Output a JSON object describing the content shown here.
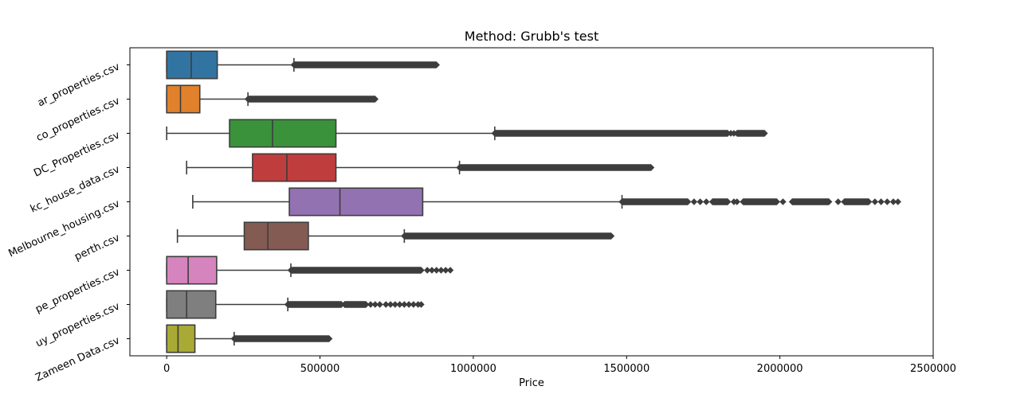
{
  "chart_data": {
    "type": "boxplot",
    "orientation": "horizontal",
    "title": "Method: Grubb's test",
    "xlabel": "Price",
    "ylabel": "",
    "xlim": [
      -120000,
      2500000
    ],
    "xticks": [
      0,
      500000,
      1000000,
      1500000,
      2000000,
      2500000
    ],
    "xtick_labels": [
      "0",
      "500000",
      "1000000",
      "1500000",
      "2000000",
      "2500000"
    ],
    "grid": false,
    "series": [
      {
        "name": "ar_properties.csv",
        "color": "#3274a1",
        "whisker_low": 0,
        "q1": 0,
        "median": 80000,
        "q3": 165000,
        "whisker_high": 415000,
        "outlier_segments": [
          [
            415000,
            880000
          ]
        ],
        "outlier_points": []
      },
      {
        "name": "co_properties.csv",
        "color": "#e1812c",
        "whisker_low": 0,
        "q1": 0,
        "median": 45000,
        "q3": 108000,
        "whisker_high": 265000,
        "outlier_segments": [
          [
            265000,
            680000
          ]
        ],
        "outlier_points": []
      },
      {
        "name": "DC_Properties.csv",
        "color": "#3a923a",
        "whisker_low": 0,
        "q1": 205000,
        "median": 345000,
        "q3": 552000,
        "whisker_high": 1070000,
        "outlier_segments": [
          [
            1070000,
            1830000
          ],
          [
            1860000,
            1950000
          ]
        ],
        "outlier_points": [
          1840000,
          1850000
        ]
      },
      {
        "name": "kc_house_data.csv",
        "color": "#c03d3e",
        "whisker_low": 65000,
        "q1": 280000,
        "median": 392000,
        "q3": 552000,
        "whisker_high": 955000,
        "outlier_segments": [
          [
            955000,
            1580000
          ]
        ],
        "outlier_points": []
      },
      {
        "name": "Melbourne_housing.csv",
        "color": "#9372b2",
        "whisker_low": 85000,
        "q1": 400000,
        "median": 565000,
        "q3": 835000,
        "whisker_high": 1485000,
        "outlier_segments": [
          [
            1485000,
            1700000
          ],
          [
            1780000,
            1830000
          ],
          [
            1880000,
            1990000
          ],
          [
            2040000,
            2160000
          ],
          [
            2210000,
            2290000
          ]
        ],
        "outlier_points": [
          1720000,
          1740000,
          1760000,
          1850000,
          1860000,
          2010000,
          2190000,
          2310000,
          2330000,
          2350000,
          2370000,
          2385000
        ]
      },
      {
        "name": "perth.csv",
        "color": "#845b53",
        "whisker_low": 35000,
        "q1": 253000,
        "median": 330000,
        "q3": 462000,
        "whisker_high": 775000,
        "outlier_segments": [
          [
            775000,
            1450000
          ]
        ],
        "outlier_points": []
      },
      {
        "name": "pe_properties.csv",
        "color": "#d684bd",
        "whisker_low": 0,
        "q1": 0,
        "median": 70000,
        "q3": 163000,
        "whisker_high": 405000,
        "outlier_segments": [
          [
            405000,
            830000
          ]
        ],
        "outlier_points": [
          850000,
          865000,
          880000,
          895000,
          910000,
          925000
        ]
      },
      {
        "name": "uy_properties.csv",
        "color": "#7f7f7f",
        "whisker_low": 0,
        "q1": 0,
        "median": 65000,
        "q3": 160000,
        "whisker_high": 395000,
        "outlier_segments": [
          [
            395000,
            570000
          ],
          [
            580000,
            650000
          ]
        ],
        "outlier_points": [
          665000,
          680000,
          695000,
          715000,
          730000,
          745000,
          760000,
          775000,
          790000,
          805000,
          820000,
          830000
        ]
      },
      {
        "name": "Zameen Data.csv",
        "color": "#a9aa35",
        "whisker_low": 0,
        "q1": 0,
        "median": 37000,
        "q3": 92000,
        "whisker_high": 220000,
        "outlier_segments": [
          [
            220000,
            530000
          ]
        ],
        "outlier_points": []
      }
    ]
  }
}
